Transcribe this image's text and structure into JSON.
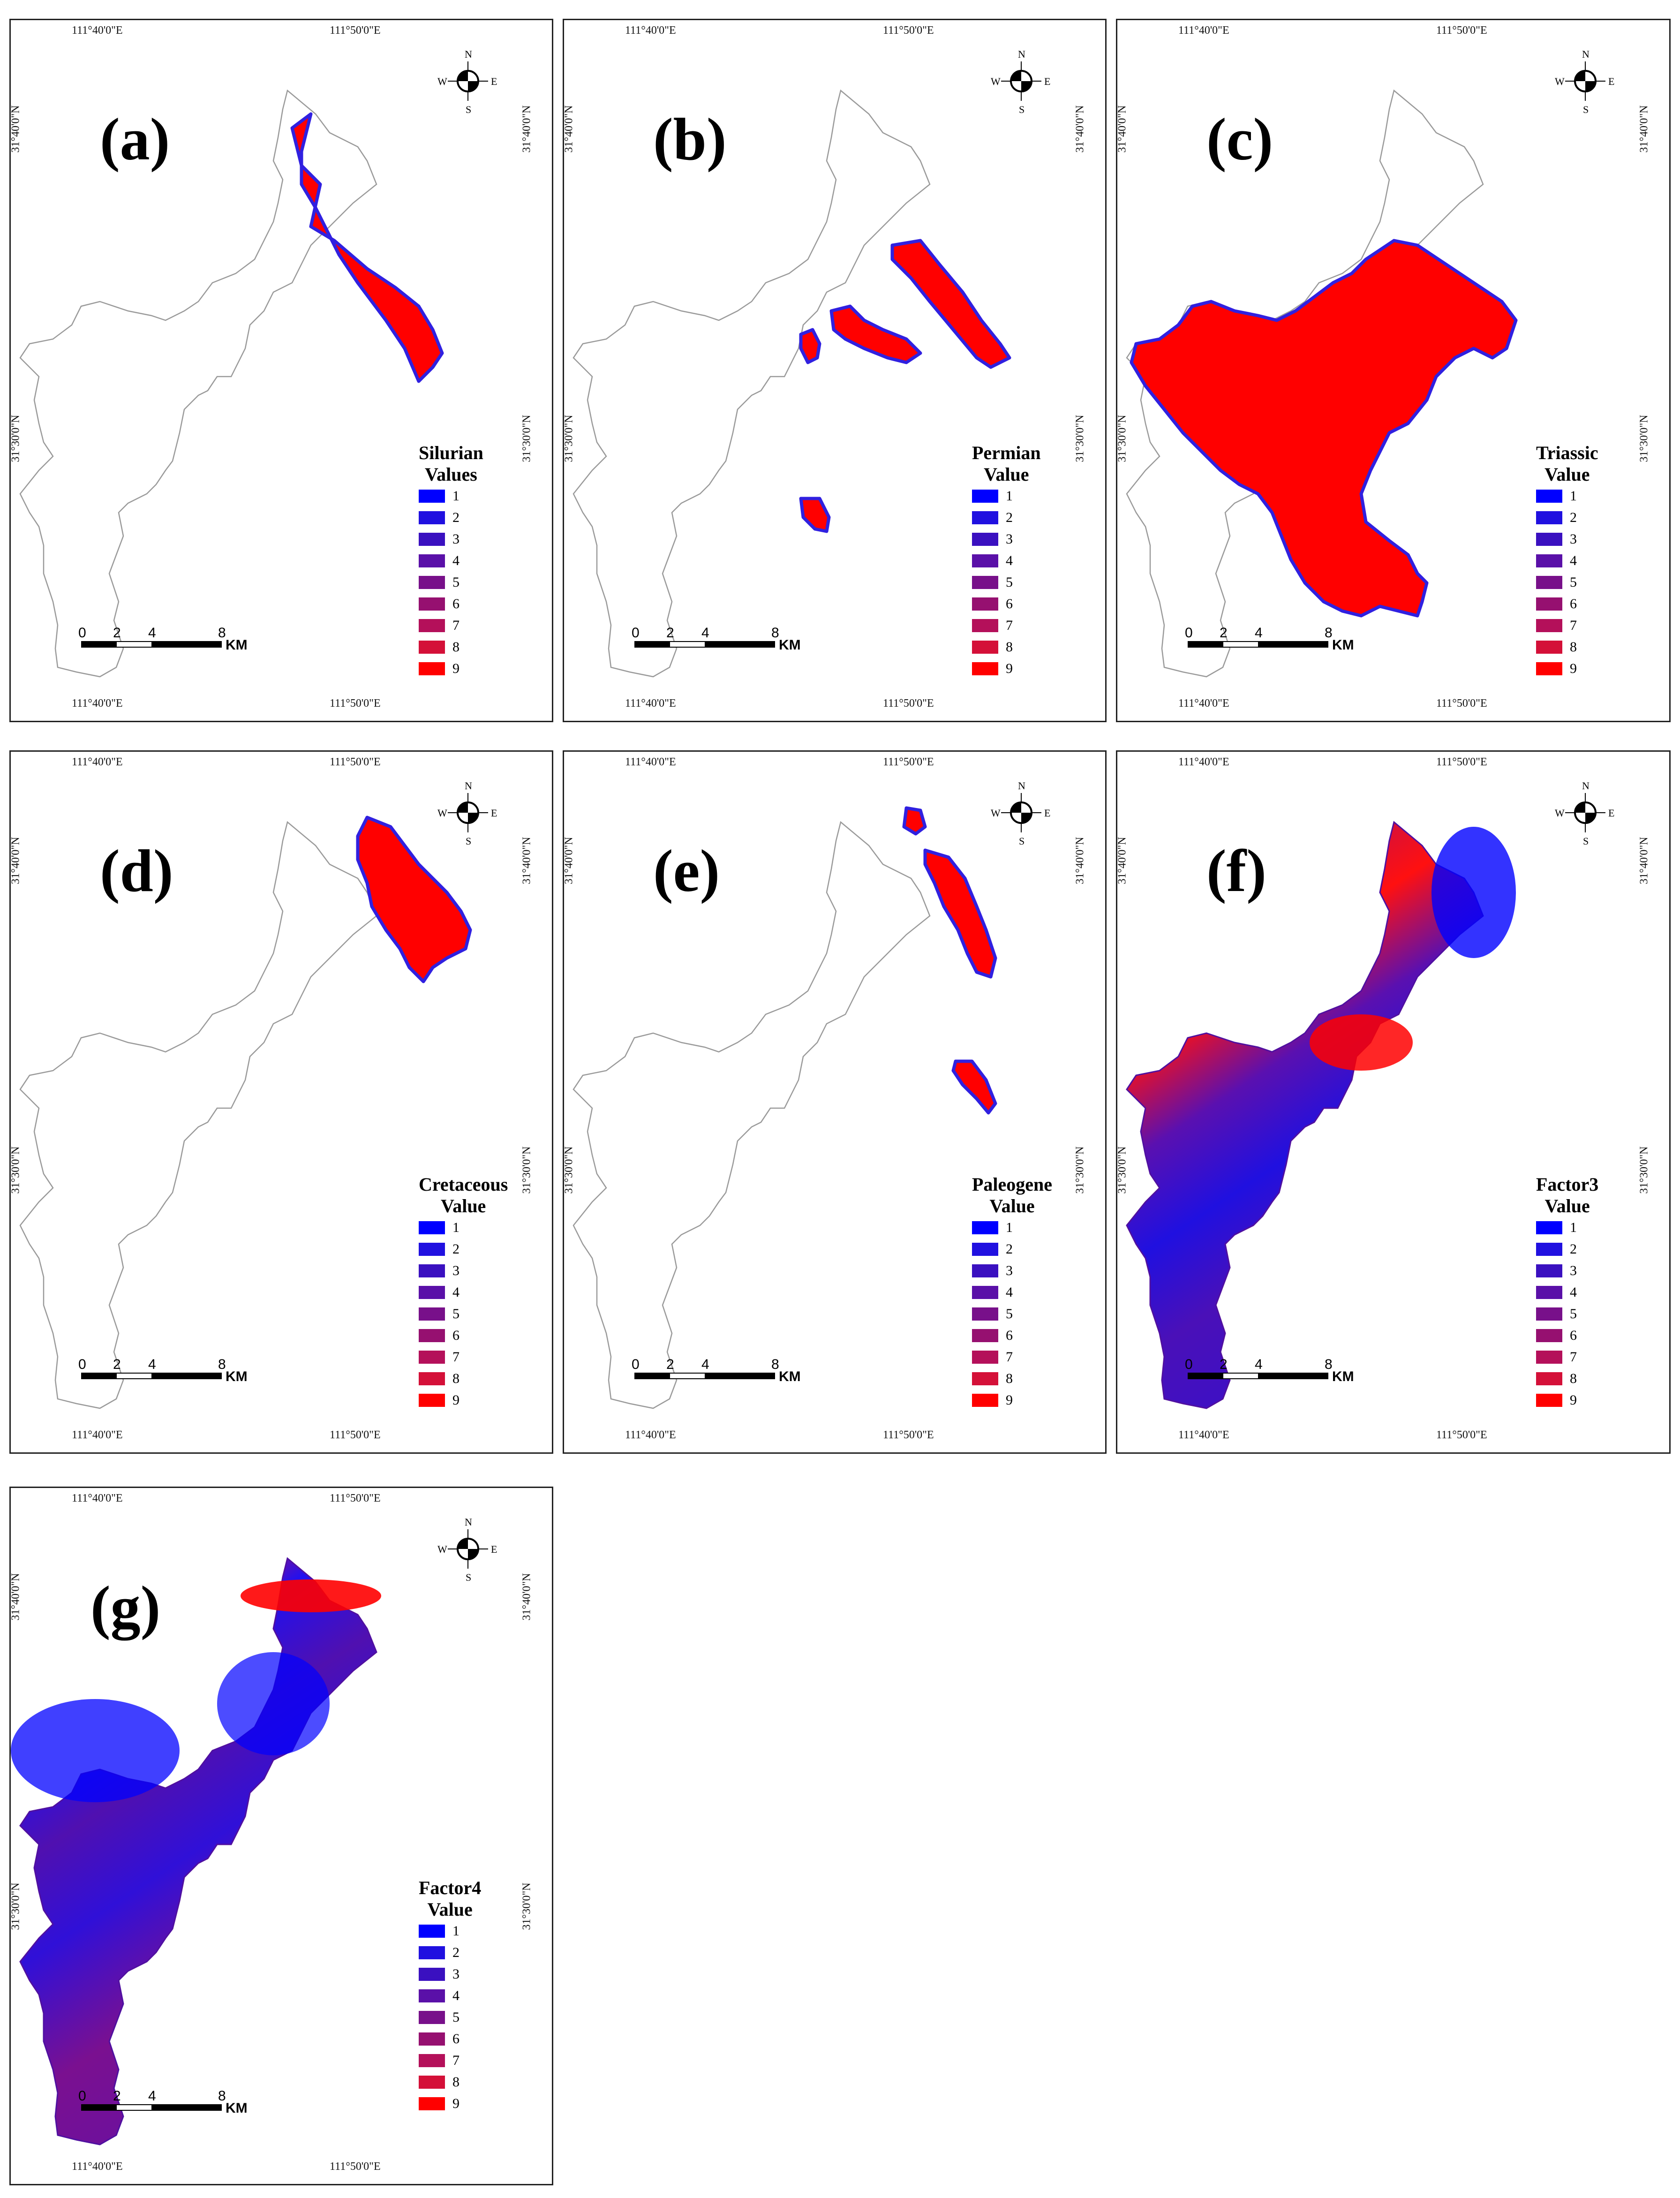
{
  "coords": {
    "lon1": "111°40'0\"E",
    "lon2": "111°50'0\"E",
    "lat1": "31°40'0\"N",
    "lat2": "31°30'0\"N"
  },
  "compass": {
    "n": "N",
    "s": "S",
    "e": "E",
    "w": "W"
  },
  "scale": {
    "ticks": [
      "0",
      "2",
      "4",
      "8"
    ],
    "unit": "KM"
  },
  "legend_values": [
    "1",
    "2",
    "3",
    "4",
    "5",
    "6",
    "7",
    "8",
    "9"
  ],
  "legend_colors": [
    "#0000ff",
    "#2010e0",
    "#3a10c0",
    "#5a10a8",
    "#78108a",
    "#961070",
    "#b4105a",
    "#d41038",
    "#ff0000"
  ],
  "colors": {
    "high": "#ff0000",
    "edge": "#3020e0",
    "outline": "#9a9a9a"
  },
  "panels": [
    {
      "id": "a",
      "label": "(a)",
      "legend_title": [
        "Silurian",
        "Values"
      ]
    },
    {
      "id": "b",
      "label": "(b)",
      "legend_title": [
        "Permian",
        "Value"
      ]
    },
    {
      "id": "c",
      "label": "(c)",
      "legend_title": [
        "Triassic",
        "Value"
      ]
    },
    {
      "id": "d",
      "label": "(d)",
      "legend_title": [
        "Cretaceous",
        "Value"
      ]
    },
    {
      "id": "e",
      "label": "(e)",
      "legend_title": [
        "Paleogene",
        "Value"
      ]
    },
    {
      "id": "f",
      "label": "(f)",
      "legend_title": [
        "Factor3",
        "Value"
      ]
    },
    {
      "id": "g",
      "label": "(g)",
      "legend_title": [
        "Factor4",
        "Value"
      ]
    }
  ]
}
